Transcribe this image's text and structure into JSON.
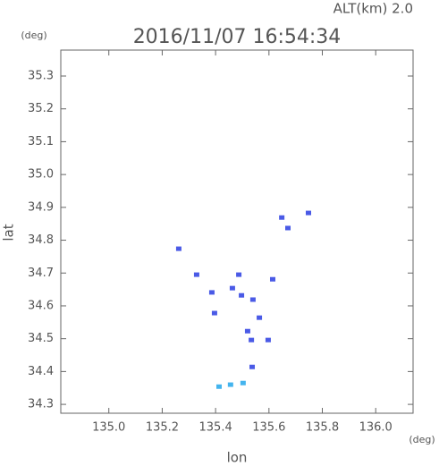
{
  "chart_data": {
    "type": "scatter",
    "title": "2016/11/07 16:54:34",
    "subtitle": "ALT(km) 2.0",
    "x_label": "lon",
    "y_label": "lat",
    "x_unit": "(deg)",
    "y_unit": "(deg)",
    "xlim": [
      134.82,
      136.14
    ],
    "ylim": [
      34.273,
      35.379
    ],
    "xticks": [
      {
        "value": 135.0,
        "label": "135.0"
      },
      135.2,
      135.4,
      135.6,
      135.8,
      {
        "value": 136.0,
        "label": "136.0"
      }
    ],
    "yticks": [
      34.3,
      34.4,
      34.5,
      34.6,
      34.7,
      34.8,
      34.9,
      {
        "value": 35.0,
        "label": "35.0"
      },
      35.1,
      35.2,
      35.3
    ],
    "series": [
      {
        "color": "#4a5ae6",
        "x": [
          135.748,
          135.487,
          135.614,
          135.497,
          135.54,
          135.564,
          135.52,
          135.597,
          135.534,
          135.396,
          135.537,
          135.671,
          135.386,
          135.463,
          135.262,
          135.329,
          135.648
        ],
        "values": [
          34.883,
          34.695,
          34.681,
          34.632,
          34.619,
          34.564,
          34.523,
          34.496,
          34.496,
          34.578,
          34.414,
          34.837,
          34.641,
          34.654,
          34.774,
          34.695,
          34.869
        ]
      },
      {
        "color": "#44b4ee",
        "x": [
          135.413,
          135.456,
          135.503
        ],
        "values": [
          34.354,
          34.36,
          34.365
        ]
      }
    ]
  }
}
